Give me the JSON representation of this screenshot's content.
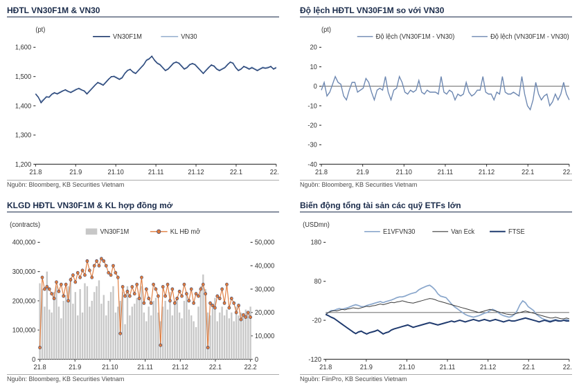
{
  "panels": {
    "tl": {
      "title": "HĐTL VN30F1M & VN30",
      "source": "Nguồn: Bloomberg, KB Securities Vietnam",
      "unit": "(pt)",
      "legend": [
        "VN30F1M",
        "VN30"
      ],
      "colors": {
        "s1": "#1f3a6e",
        "s2": "#9bb3d1"
      },
      "ylim": [
        1200,
        1600
      ],
      "ystep": 100,
      "xticks": [
        "21.8",
        "21.9",
        "21.10",
        "21.11",
        "21.12",
        "22.1",
        "22.2"
      ],
      "series": {
        "s1": [
          1440,
          1430,
          1410,
          1420,
          1430,
          1430,
          1440,
          1445,
          1440,
          1445,
          1450,
          1455,
          1450,
          1445,
          1450,
          1455,
          1460,
          1455,
          1450,
          1440,
          1450,
          1460,
          1470,
          1480,
          1475,
          1470,
          1480,
          1490,
          1500,
          1500,
          1495,
          1490,
          1495,
          1510,
          1520,
          1525,
          1515,
          1510,
          1520,
          1530,
          1540,
          1555,
          1560,
          1570,
          1555,
          1545,
          1540,
          1530,
          1520,
          1525,
          1535,
          1545,
          1550,
          1545,
          1535,
          1525,
          1530,
          1540,
          1545,
          1540,
          1530,
          1520,
          1510,
          1520,
          1530,
          1540,
          1535,
          1525,
          1520,
          1525,
          1530,
          1540,
          1550,
          1545,
          1530,
          1520,
          1525,
          1535,
          1530,
          1525,
          1530,
          1525,
          1520,
          1525,
          1530,
          1528,
          1530,
          1535,
          1525,
          1530
        ],
        "s2": [
          1442,
          1428,
          1415,
          1422,
          1432,
          1428,
          1438,
          1443,
          1442,
          1447,
          1452,
          1453,
          1448,
          1447,
          1452,
          1457,
          1458,
          1453,
          1452,
          1442,
          1452,
          1462,
          1472,
          1478,
          1477,
          1472,
          1482,
          1492,
          1498,
          1502,
          1497,
          1492,
          1498,
          1512,
          1522,
          1523,
          1517,
          1512,
          1522,
          1532,
          1542,
          1557,
          1562,
          1568,
          1557,
          1547,
          1542,
          1532,
          1522,
          1527,
          1537,
          1547,
          1548,
          1547,
          1537,
          1527,
          1532,
          1542,
          1543,
          1542,
          1532,
          1522,
          1512,
          1522,
          1532,
          1538,
          1537,
          1527,
          1522,
          1527,
          1532,
          1542,
          1548,
          1547,
          1532,
          1522,
          1527,
          1533,
          1532,
          1527,
          1532,
          1527,
          1522,
          1527,
          1532,
          1530,
          1532,
          1533,
          1527,
          1532
        ]
      }
    },
    "tr": {
      "title": "Độ lệch HĐTL VN30F1M so với VN30",
      "source": "Nguồn: Bloomberg, KB Securities Vietnam",
      "unit": "(pt)",
      "legend": [
        "Độ lệch (VN30F1M - VN30)",
        "Độ lệch (VN30F1M - VN30)"
      ],
      "colors": {
        "s": "#6b86b0"
      },
      "ylim": [
        -40,
        20
      ],
      "ystep": 10,
      "xticks": [
        "21.8",
        "21.9",
        "21.10",
        "21.11",
        "21.12",
        "22.1",
        "22.2"
      ],
      "series": {
        "s": [
          -2,
          2,
          -5,
          -3,
          1,
          5,
          2,
          1,
          -5,
          -7,
          -2,
          2,
          2,
          -3,
          -2,
          -1,
          4,
          2,
          -3,
          -7,
          -2,
          -1,
          -2,
          5,
          -3,
          -7,
          -2,
          -1,
          5,
          2,
          -3,
          -4,
          -2,
          -3,
          -2,
          3,
          -3,
          -4,
          -2,
          -3,
          -3,
          -3,
          -4,
          5,
          -3,
          -4,
          -2,
          -3,
          -7,
          -4,
          -5,
          -4,
          2,
          -3,
          -5,
          -4,
          -2,
          -2,
          5,
          -3,
          -4,
          -4,
          -7,
          -3,
          -4,
          5,
          -3,
          -4,
          -4,
          -3,
          -4,
          -5,
          5,
          -4,
          -10,
          -12,
          -7,
          2,
          -4,
          -7,
          -5,
          -4,
          -10,
          -8,
          -4,
          -7,
          -4,
          2,
          -4,
          -7
        ]
      }
    },
    "bl": {
      "title": "KLGD HĐTL VN30F1M & KL hợp đồng mở",
      "source": "Nguồn: Bloomberg, KB Securities Vietnam",
      "unit": "(contracts)",
      "legend": [
        "VN30F1M",
        "KL HĐ mở"
      ],
      "colors": {
        "bar": "#c7c7c7",
        "line": "#e07b3c",
        "linefill": "#1f3a6e"
      },
      "yLleft": [
        0,
        400000
      ],
      "yLstep": 100000,
      "yRright": [
        0,
        50000
      ],
      "yRstep": 10000,
      "xticks": [
        "21.8",
        "21.9",
        "21.10",
        "21.11",
        "21.12",
        "22.1",
        "22.2"
      ],
      "bars": [
        260000,
        240000,
        180000,
        300000,
        170000,
        160000,
        230000,
        250000,
        180000,
        140000,
        200000,
        220000,
        250000,
        280000,
        190000,
        230000,
        150000,
        240000,
        160000,
        260000,
        250000,
        180000,
        200000,
        230000,
        250000,
        270000,
        190000,
        220000,
        150000,
        200000,
        230000,
        250000,
        160000,
        180000,
        200000,
        230000,
        120000,
        250000,
        150000,
        180000,
        190000,
        210000,
        220000,
        250000,
        160000,
        130000,
        180000,
        150000,
        200000,
        210000,
        160000,
        130000,
        180000,
        200000,
        170000,
        230000,
        150000,
        190000,
        210000,
        160000,
        140000,
        200000,
        220000,
        170000,
        150000,
        130000,
        110000,
        180000,
        250000,
        290000,
        240000,
        160000,
        150000,
        190000,
        210000,
        130000,
        160000,
        180000,
        150000,
        170000,
        140000,
        160000,
        130000,
        180000,
        150000,
        160000,
        150000,
        170000,
        160000,
        180000
      ],
      "line": [
        5000,
        35000,
        30000,
        31000,
        30000,
        28000,
        26000,
        33000,
        29000,
        32000,
        27000,
        32000,
        25000,
        34000,
        36000,
        33000,
        37000,
        35000,
        38000,
        36000,
        42000,
        38000,
        35000,
        40000,
        42000,
        40000,
        43000,
        42000,
        40000,
        37000,
        36000,
        40000,
        37000,
        35000,
        11000,
        31000,
        27000,
        29000,
        27000,
        31000,
        28000,
        32000,
        26000,
        35000,
        24000,
        30000,
        26000,
        24000,
        32000,
        30000,
        27000,
        6000,
        31000,
        27000,
        32000,
        25000,
        30000,
        24000,
        26000,
        29000,
        27000,
        32000,
        28000,
        25000,
        30000,
        24000,
        28000,
        27000,
        30000,
        32000,
        28000,
        5000,
        24000,
        23000,
        22000,
        27000,
        26000,
        30000,
        24000,
        32000,
        22000,
        26000,
        24000,
        20000,
        23000,
        17000,
        19000,
        18000,
        20000,
        18000
      ]
    },
    "br": {
      "title": "Biến động tổng tài sản các quỹ ETFs lớn",
      "source": "Nguồn: FiinPro, KB Securities Vietnam",
      "unit": "(USDmn)",
      "legend": [
        "E1VFVN30",
        "Van Eck",
        "FTSE"
      ],
      "colors": {
        "e1": "#8aa7cc",
        "ve": "#3a3a3a",
        "ft": "#1f3a6e"
      },
      "ylim": [
        -120,
        180
      ],
      "ystep": 100,
      "yextra": 80,
      "xticks": [
        "21.8",
        "21.9",
        "21.10",
        "21.11",
        "21.12",
        "22.1",
        "22.2"
      ],
      "series": {
        "e1": [
          -5,
          0,
          5,
          5,
          8,
          10,
          8,
          10,
          12,
          15,
          18,
          20,
          18,
          15,
          15,
          18,
          20,
          22,
          24,
          26,
          28,
          25,
          28,
          30,
          32,
          35,
          38,
          40,
          40,
          42,
          45,
          48,
          50,
          52,
          58,
          62,
          65,
          68,
          70,
          65,
          58,
          48,
          42,
          40,
          38,
          30,
          22,
          15,
          10,
          5,
          0,
          -5,
          -8,
          -10,
          -12,
          -10,
          -8,
          -5,
          -2,
          0,
          5,
          8,
          5,
          0,
          -5,
          -8,
          -10,
          -12,
          -10,
          -5,
          5,
          20,
          30,
          25,
          15,
          10,
          5,
          -5,
          -10,
          -15,
          -18,
          -20,
          -22,
          -20,
          -18,
          -20,
          -22,
          -20,
          -18,
          -20
        ],
        "ve": [
          -5,
          0,
          3,
          5,
          4,
          6,
          8,
          7,
          9,
          10,
          12,
          11,
          10,
          12,
          14,
          16,
          15,
          17,
          18,
          20,
          22,
          20,
          22,
          24,
          26,
          25,
          27,
          28,
          30,
          28,
          26,
          25,
          24,
          26,
          28,
          30,
          32,
          34,
          36,
          35,
          33,
          30,
          28,
          26,
          24,
          22,
          20,
          18,
          16,
          14,
          12,
          10,
          8,
          6,
          4,
          2,
          0,
          2,
          4,
          6,
          8,
          6,
          4,
          2,
          0,
          -2,
          -4,
          -5,
          -6,
          -4,
          -2,
          0,
          2,
          4,
          2,
          0,
          -2,
          -4,
          -6,
          -8,
          -10,
          -12,
          -14,
          -14,
          -12,
          -14,
          -16,
          -16,
          -14,
          -16
        ],
        "ft": [
          -5,
          -8,
          -12,
          -15,
          -20,
          -25,
          -30,
          -35,
          -40,
          -45,
          -50,
          -54,
          -50,
          -48,
          -52,
          -55,
          -52,
          -50,
          -48,
          -45,
          -50,
          -55,
          -52,
          -50,
          -45,
          -42,
          -40,
          -38,
          -36,
          -34,
          -32,
          -35,
          -38,
          -36,
          -34,
          -32,
          -30,
          -28,
          -26,
          -28,
          -30,
          -32,
          -30,
          -28,
          -26,
          -24,
          -22,
          -24,
          -22,
          -20,
          -22,
          -24,
          -22,
          -20,
          -18,
          -20,
          -22,
          -20,
          -18,
          -20,
          -22,
          -20,
          -18,
          -20,
          -22,
          -24,
          -22,
          -20,
          -22,
          -22,
          -20,
          -18,
          -16,
          -14,
          -16,
          -18,
          -20,
          -22,
          -24,
          -22,
          -20,
          -22,
          -24,
          -22,
          -20,
          -22,
          -22,
          -20,
          -22,
          -22
        ]
      }
    }
  }
}
